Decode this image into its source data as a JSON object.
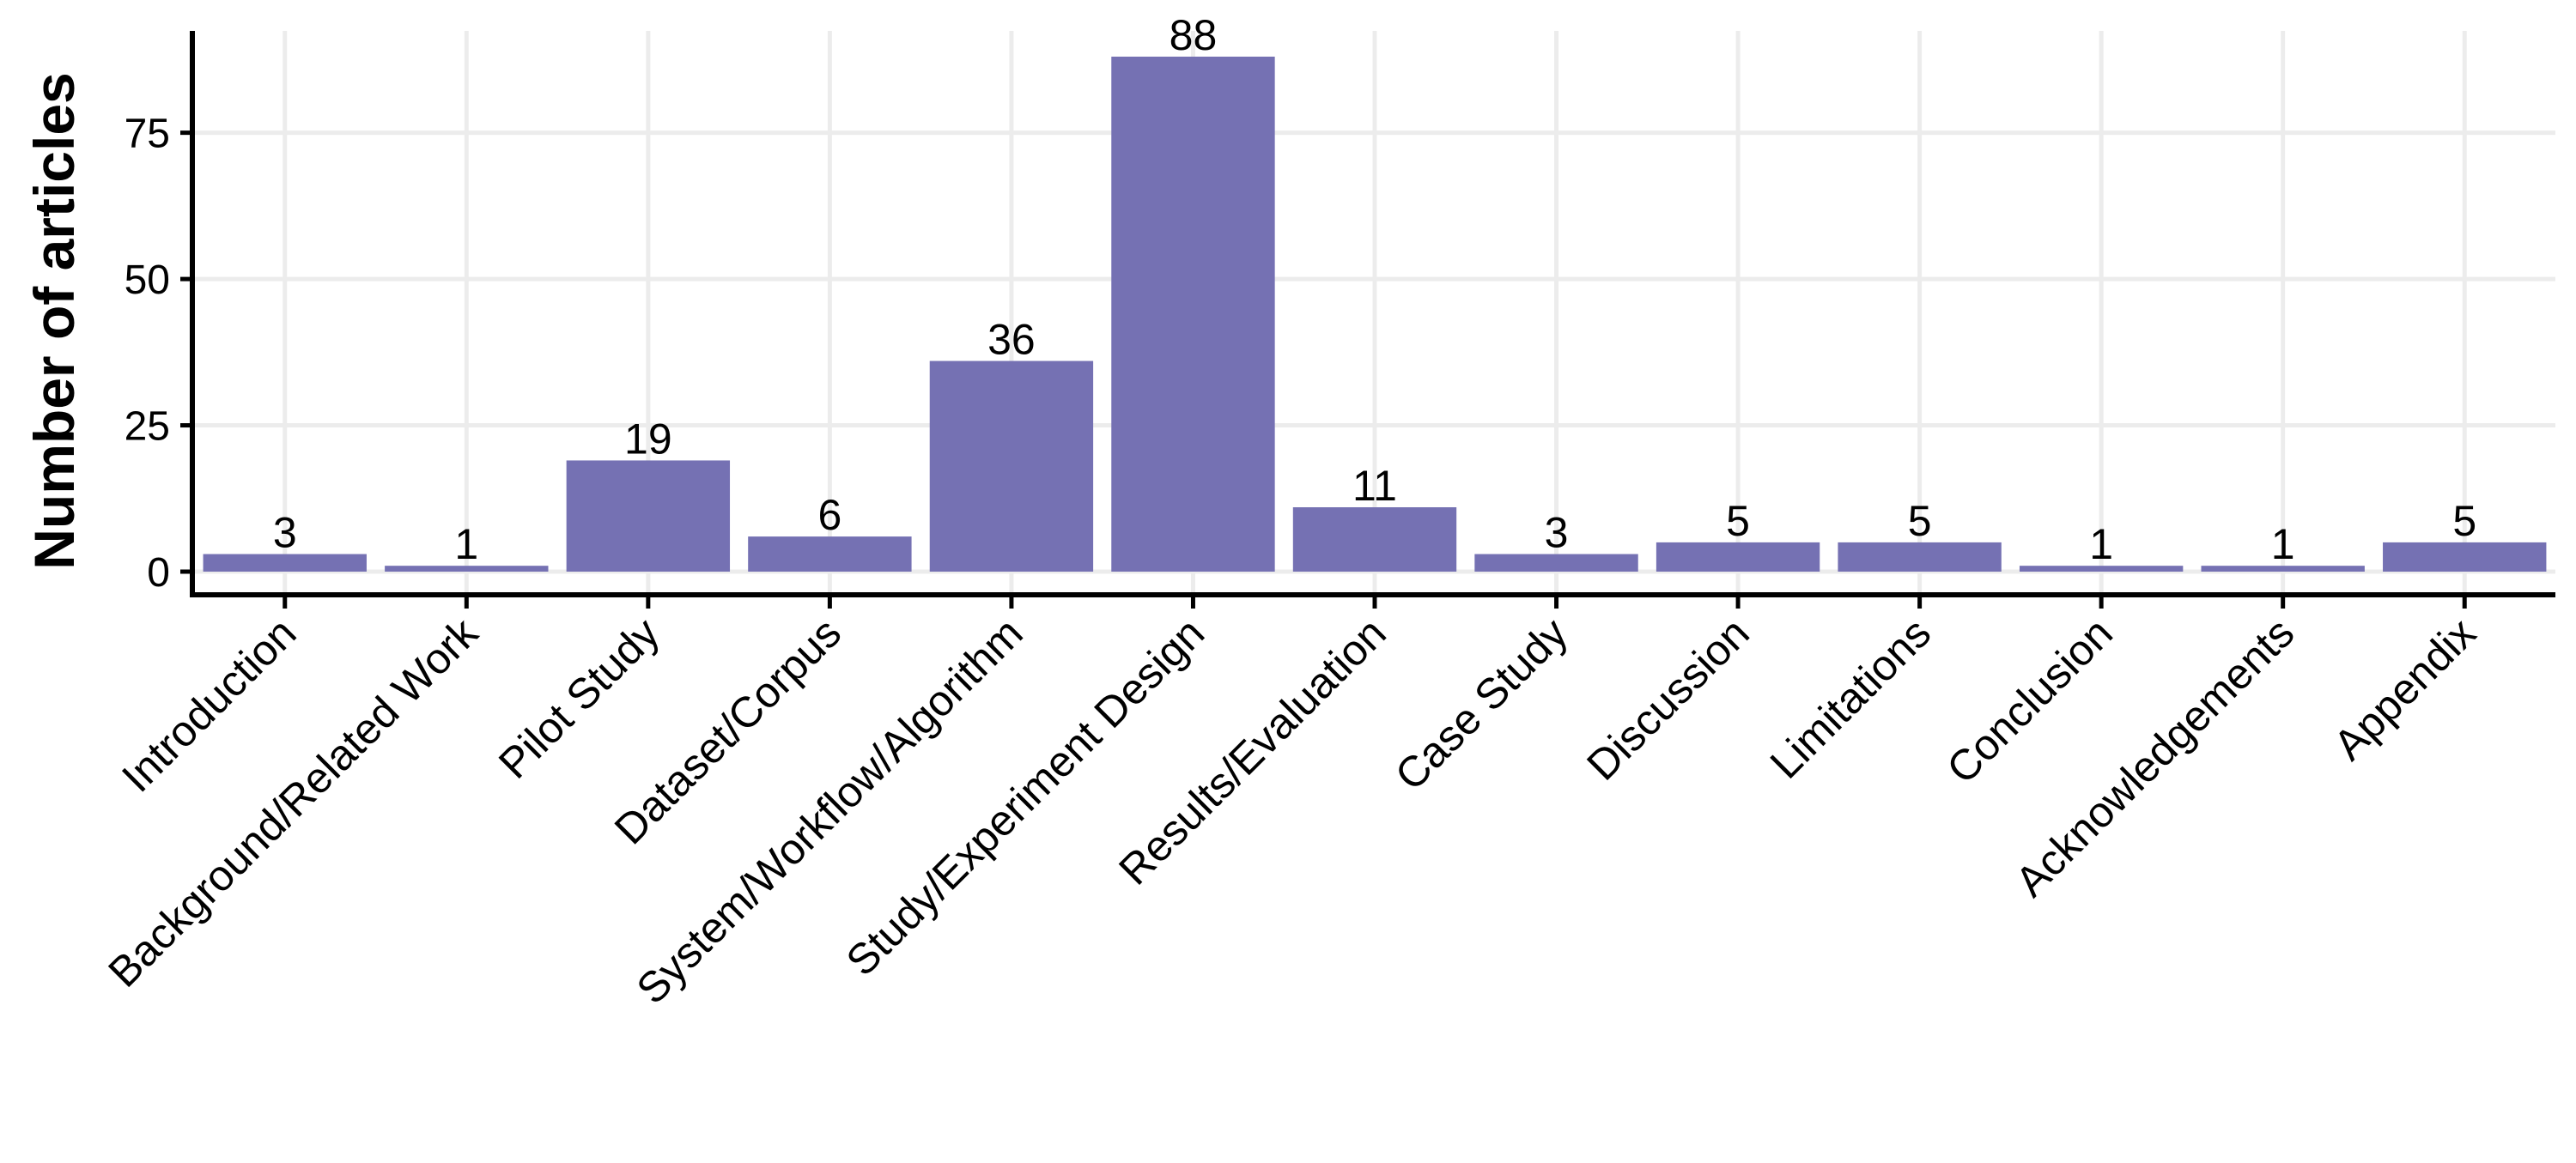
{
  "chart_data": {
    "type": "bar",
    "title": "",
    "xlabel": "",
    "ylabel": "Number of articles",
    "categories": [
      "Introduction",
      "Background/Related Work",
      "Pilot Study",
      "Dataset/Corpus",
      "System/Workflow/Algorithm",
      "Study/Experiment Design",
      "Results/Evaluation",
      "Case Study",
      "Discussion",
      "Limitations",
      "Conclusion",
      "Acknowledgements",
      "Appendix"
    ],
    "values": [
      3,
      1,
      19,
      6,
      36,
      88,
      11,
      3,
      5,
      5,
      1,
      1,
      5
    ],
    "data_labels": [
      "3",
      "1",
      "19",
      "6",
      "36",
      "88",
      "11",
      "3",
      "5",
      "5",
      "1",
      "1",
      "5"
    ],
    "yticks": [
      0,
      25,
      50,
      75
    ],
    "ytick_labels": [
      "0",
      "25",
      "50",
      "75"
    ],
    "ylim": [
      -4.4,
      92.4
    ],
    "grid": true,
    "legend": "none",
    "bar_color": "#7571b3",
    "grid_color": "#ececec",
    "axis_color": "#000000"
  }
}
